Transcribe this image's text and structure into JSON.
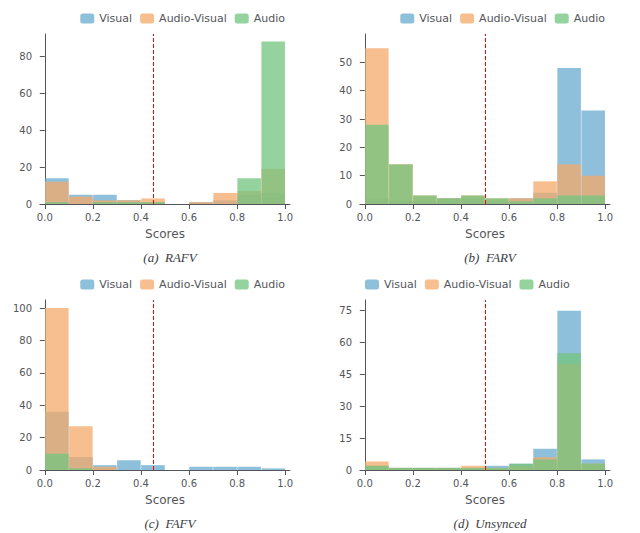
{
  "chart_data": [
    {
      "type": "bar",
      "title": "(a)  RAFV",
      "xlabel": "Scores",
      "bins": [
        0.0,
        0.1,
        0.2,
        0.3,
        0.4,
        0.5,
        0.6,
        0.7,
        0.8,
        0.9,
        1.0
      ],
      "xlim": [
        -0.02,
        1.02
      ],
      "xticks": [
        {
          "value": 0.0,
          "label": "0.0"
        },
        0.2,
        0.4,
        0.6,
        0.8,
        {
          "value": 1.0,
          "label": "1.0"
        }
      ],
      "ylim": [
        0,
        92
      ],
      "yticks": [
        0,
        20,
        40,
        60,
        80
      ],
      "grid": false,
      "legend": "upper right",
      "threshold": 0.45,
      "series": [
        {
          "name": "Visual",
          "color": "#6aabcf",
          "values": [
            14,
            5,
            5,
            2,
            1,
            0,
            1,
            2,
            5,
            6
          ]
        },
        {
          "name": "Audio-Visual",
          "color": "#f4a96a",
          "values": [
            12,
            4,
            2,
            2,
            3,
            0,
            1,
            6,
            7,
            19
          ]
        },
        {
          "name": "Audio",
          "color": "#72c47e",
          "values": [
            1,
            0,
            1,
            1,
            1,
            0,
            0,
            0,
            14,
            88
          ]
        }
      ]
    },
    {
      "type": "bar",
      "title": "(b)  FARV",
      "xlabel": "Scores",
      "bins": [
        0.0,
        0.1,
        0.2,
        0.3,
        0.4,
        0.5,
        0.6,
        0.7,
        0.8,
        0.9,
        1.0
      ],
      "xlim": [
        -0.02,
        1.02
      ],
      "xticks": [
        {
          "value": 0.0,
          "label": "0.0"
        },
        0.2,
        0.4,
        0.6,
        0.8,
        {
          "value": 1.0,
          "label": "1.0"
        }
      ],
      "ylim": [
        0,
        60
      ],
      "yticks": [
        0,
        10,
        20,
        30,
        40,
        50
      ],
      "grid": false,
      "legend": "upper right",
      "threshold": 0.5,
      "series": [
        {
          "name": "Visual",
          "color": "#6aabcf",
          "values": [
            2,
            1,
            1,
            2,
            2,
            1,
            2,
            4,
            48,
            33
          ]
        },
        {
          "name": "Audio-Visual",
          "color": "#f4a96a",
          "values": [
            55,
            14,
            3,
            2,
            3,
            2,
            2,
            8,
            14,
            10
          ]
        },
        {
          "name": "Audio",
          "color": "#72c47e",
          "values": [
            28,
            14,
            3,
            2,
            3,
            2,
            1,
            2,
            3,
            3
          ]
        }
      ]
    },
    {
      "type": "bar",
      "title": "(c)  FAFV",
      "xlabel": "Scores",
      "bins": [
        0.0,
        0.1,
        0.2,
        0.3,
        0.4,
        0.5,
        0.6,
        0.7,
        0.8,
        0.9,
        1.0
      ],
      "xlim": [
        -0.02,
        1.02
      ],
      "xticks": [
        {
          "value": 0.0,
          "label": "0.0"
        },
        0.2,
        0.4,
        0.6,
        0.8,
        {
          "value": 1.0,
          "label": "1.0"
        }
      ],
      "ylim": [
        0,
        105
      ],
      "yticks": [
        0,
        20,
        40,
        60,
        80,
        100
      ],
      "grid": false,
      "legend": "upper right",
      "threshold": 0.45,
      "series": [
        {
          "name": "Visual",
          "color": "#6aabcf",
          "values": [
            36,
            8,
            3,
            6,
            3,
            0,
            2,
            2,
            2,
            1
          ]
        },
        {
          "name": "Audio-Visual",
          "color": "#f4a96a",
          "values": [
            100,
            27,
            2,
            0,
            0,
            0,
            0,
            0,
            0,
            0
          ]
        },
        {
          "name": "Audio",
          "color": "#72c47e",
          "values": [
            10,
            1,
            0,
            0,
            0,
            0,
            0,
            0,
            0,
            0
          ]
        }
      ]
    },
    {
      "type": "bar",
      "title": "(d)  Unsynced",
      "xlabel": "Scores",
      "bins": [
        0.0,
        0.1,
        0.2,
        0.3,
        0.4,
        0.5,
        0.6,
        0.7,
        0.8,
        0.9,
        1.0
      ],
      "xlim": [
        -0.02,
        1.02
      ],
      "xticks": [
        {
          "value": 0.0,
          "label": "0.0"
        },
        0.2,
        0.4,
        0.6,
        0.8,
        {
          "value": 1.0,
          "label": "1.0"
        }
      ],
      "ylim": [
        0,
        80
      ],
      "yticks": [
        0,
        15,
        30,
        45,
        60,
        75
      ],
      "grid": false,
      "legend": "upper left",
      "threshold": 0.5,
      "series": [
        {
          "name": "Visual",
          "color": "#6aabcf",
          "values": [
            2,
            1,
            1,
            1,
            1,
            2,
            3,
            10,
            75,
            5
          ]
        },
        {
          "name": "Audio-Visual",
          "color": "#f4a96a",
          "values": [
            4,
            1,
            1,
            1,
            2,
            1,
            2,
            6,
            50,
            3
          ]
        },
        {
          "name": "Audio",
          "color": "#72c47e",
          "values": [
            2,
            1,
            1,
            1,
            1,
            1,
            3,
            5,
            55,
            3
          ]
        }
      ]
    }
  ]
}
